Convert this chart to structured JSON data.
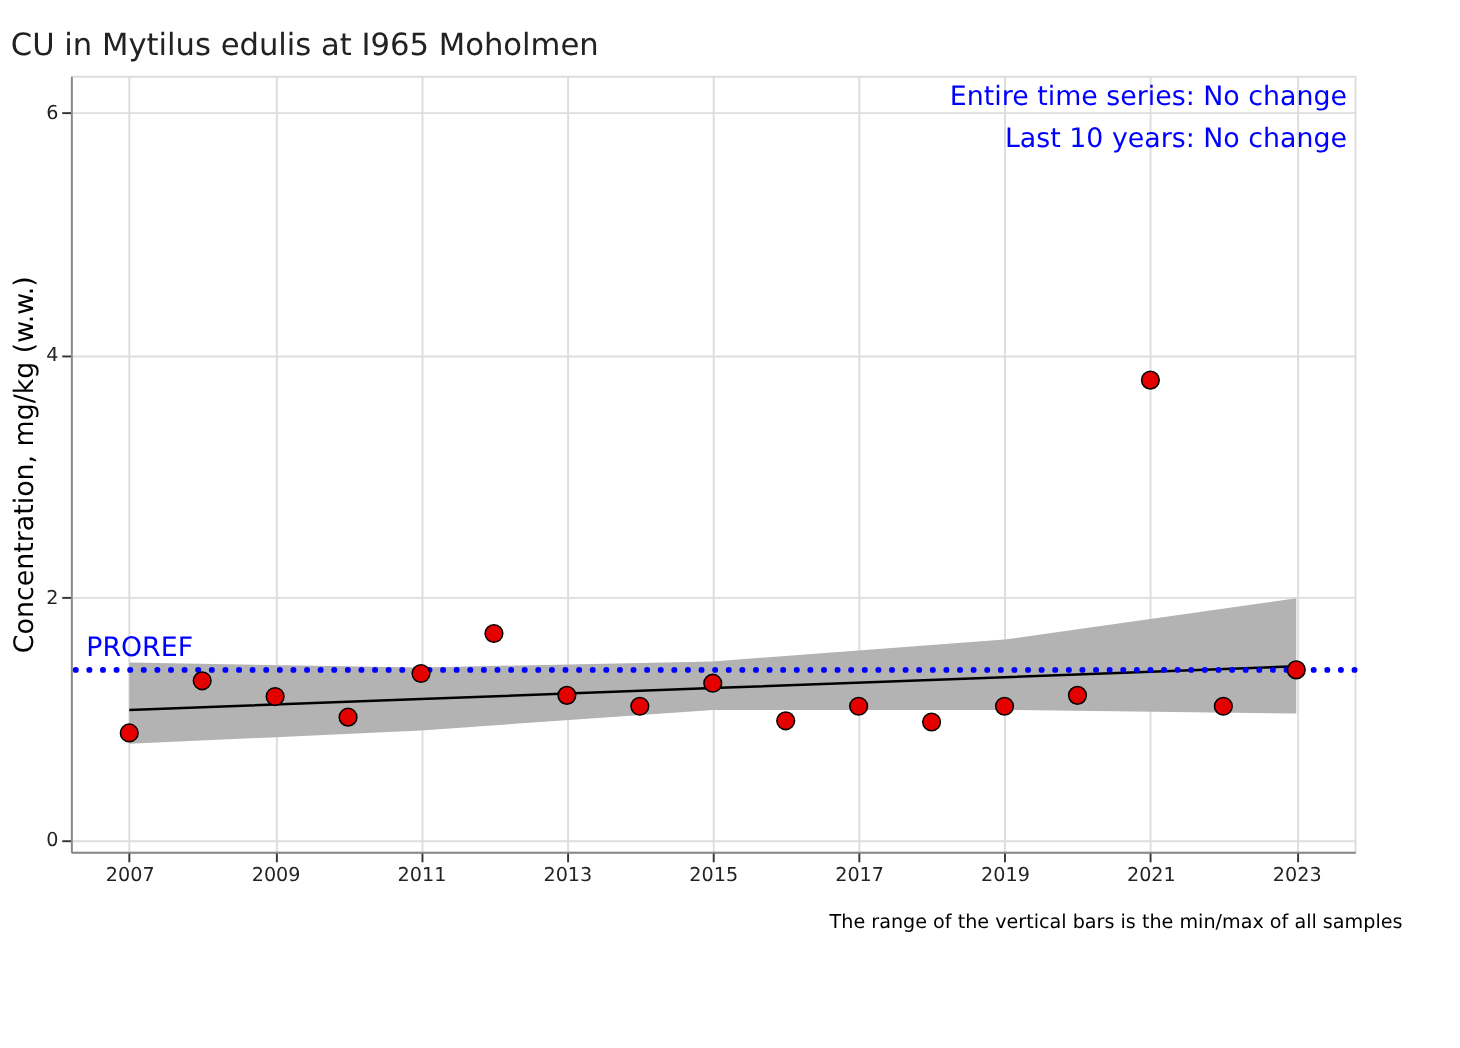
{
  "chart_data": {
    "type": "scatter",
    "title": "CU in Mytilus edulis at I965 Moholmen",
    "ylabel": "Concentration, mg/kg (w.w.)",
    "x": [
      2007,
      2008,
      2009,
      2010,
      2011,
      2012,
      2013,
      2014,
      2015,
      2016,
      2017,
      2018,
      2019,
      2020,
      2021,
      2022,
      2023
    ],
    "series": [
      {
        "color": "#e50000",
        "marker": "circle",
        "values": [
          0.88,
          1.31,
          1.18,
          1.01,
          1.37,
          1.7,
          1.19,
          1.1,
          1.29,
          0.98,
          1.1,
          0.97,
          1.1,
          1.19,
          3.79,
          1.1,
          1.4
        ]
      },
      {
        "type": "line",
        "color": "#000000",
        "marker": "none",
        "line_style": "solid",
        "x": [
          2007,
          2011,
          2015,
          2019,
          2023
        ],
        "values": [
          1.07,
          1.16,
          1.25,
          1.34,
          1.43
        ],
        "lower": [
          0.79,
          0.9,
          1.07,
          1.07,
          1.04
        ],
        "upper": [
          1.46,
          1.42,
          1.47,
          1.65,
          1.99
        ]
      }
    ],
    "ref_lines": [
      {
        "axis": "y",
        "value": 1.4,
        "label": "PROREF",
        "color": "#0000ff",
        "line_style": "dotted"
      }
    ],
    "annotations": [
      "Entire time series: No change",
      "Last 10 years: No change",
      "The range of the vertical bars is the min/max of all samples"
    ],
    "xlim": [
      2006.2,
      2023.8
    ],
    "xticks": [
      2007,
      2009,
      2011,
      2013,
      2015,
      2017,
      2019,
      2021,
      2023
    ],
    "ylim": [
      -0.1,
      6.3
    ],
    "yticks": [
      0,
      2,
      4,
      6
    ],
    "grid": true,
    "legend": false
  }
}
